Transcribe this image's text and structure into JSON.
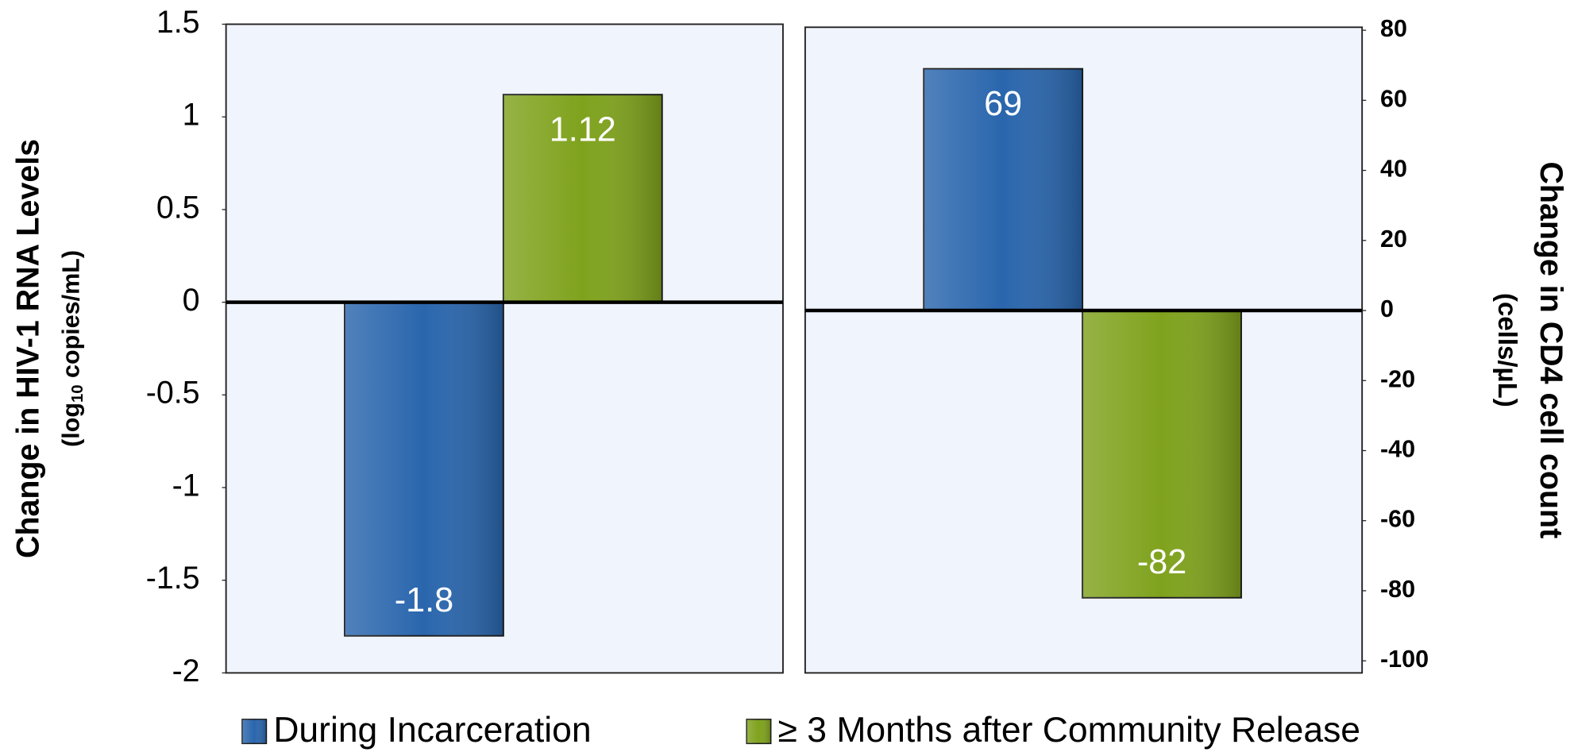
{
  "chart_data": [
    {
      "type": "bar",
      "ylabel": "Change in HIV-1 RNA Levels",
      "ylabel_units": [
        "(log",
        "10",
        " copies/mL)"
      ],
      "categories": [
        null
      ],
      "series": [
        {
          "name": "During Incarceration",
          "color": "#2a66ad",
          "values": [
            -1.8
          ]
        },
        {
          "name": "≥ 3 Months after Community Release",
          "color": "#7fa21d",
          "values": [
            1.12
          ]
        }
      ],
      "ylim": [
        -2,
        1.5
      ],
      "yticks": [
        -2,
        -1.5,
        -1,
        -0.5,
        0,
        0.5,
        1,
        1.5
      ]
    },
    {
      "type": "bar",
      "ylabel": "Change in CD4 cell count",
      "ylabel_units": [
        "(cells/µL)"
      ],
      "categories": [
        null
      ],
      "series": [
        {
          "name": "During Incarceration",
          "color": "#2a66ad",
          "values": [
            69
          ]
        },
        {
          "name": "≥ 3 Months after Community Release",
          "color": "#7fa21d",
          "values": [
            -82
          ]
        }
      ],
      "ylim": [
        -100,
        80
      ],
      "yticks": [
        -100,
        -80,
        -60,
        -40,
        -20,
        0,
        20,
        40,
        60,
        80
      ]
    }
  ]
}
